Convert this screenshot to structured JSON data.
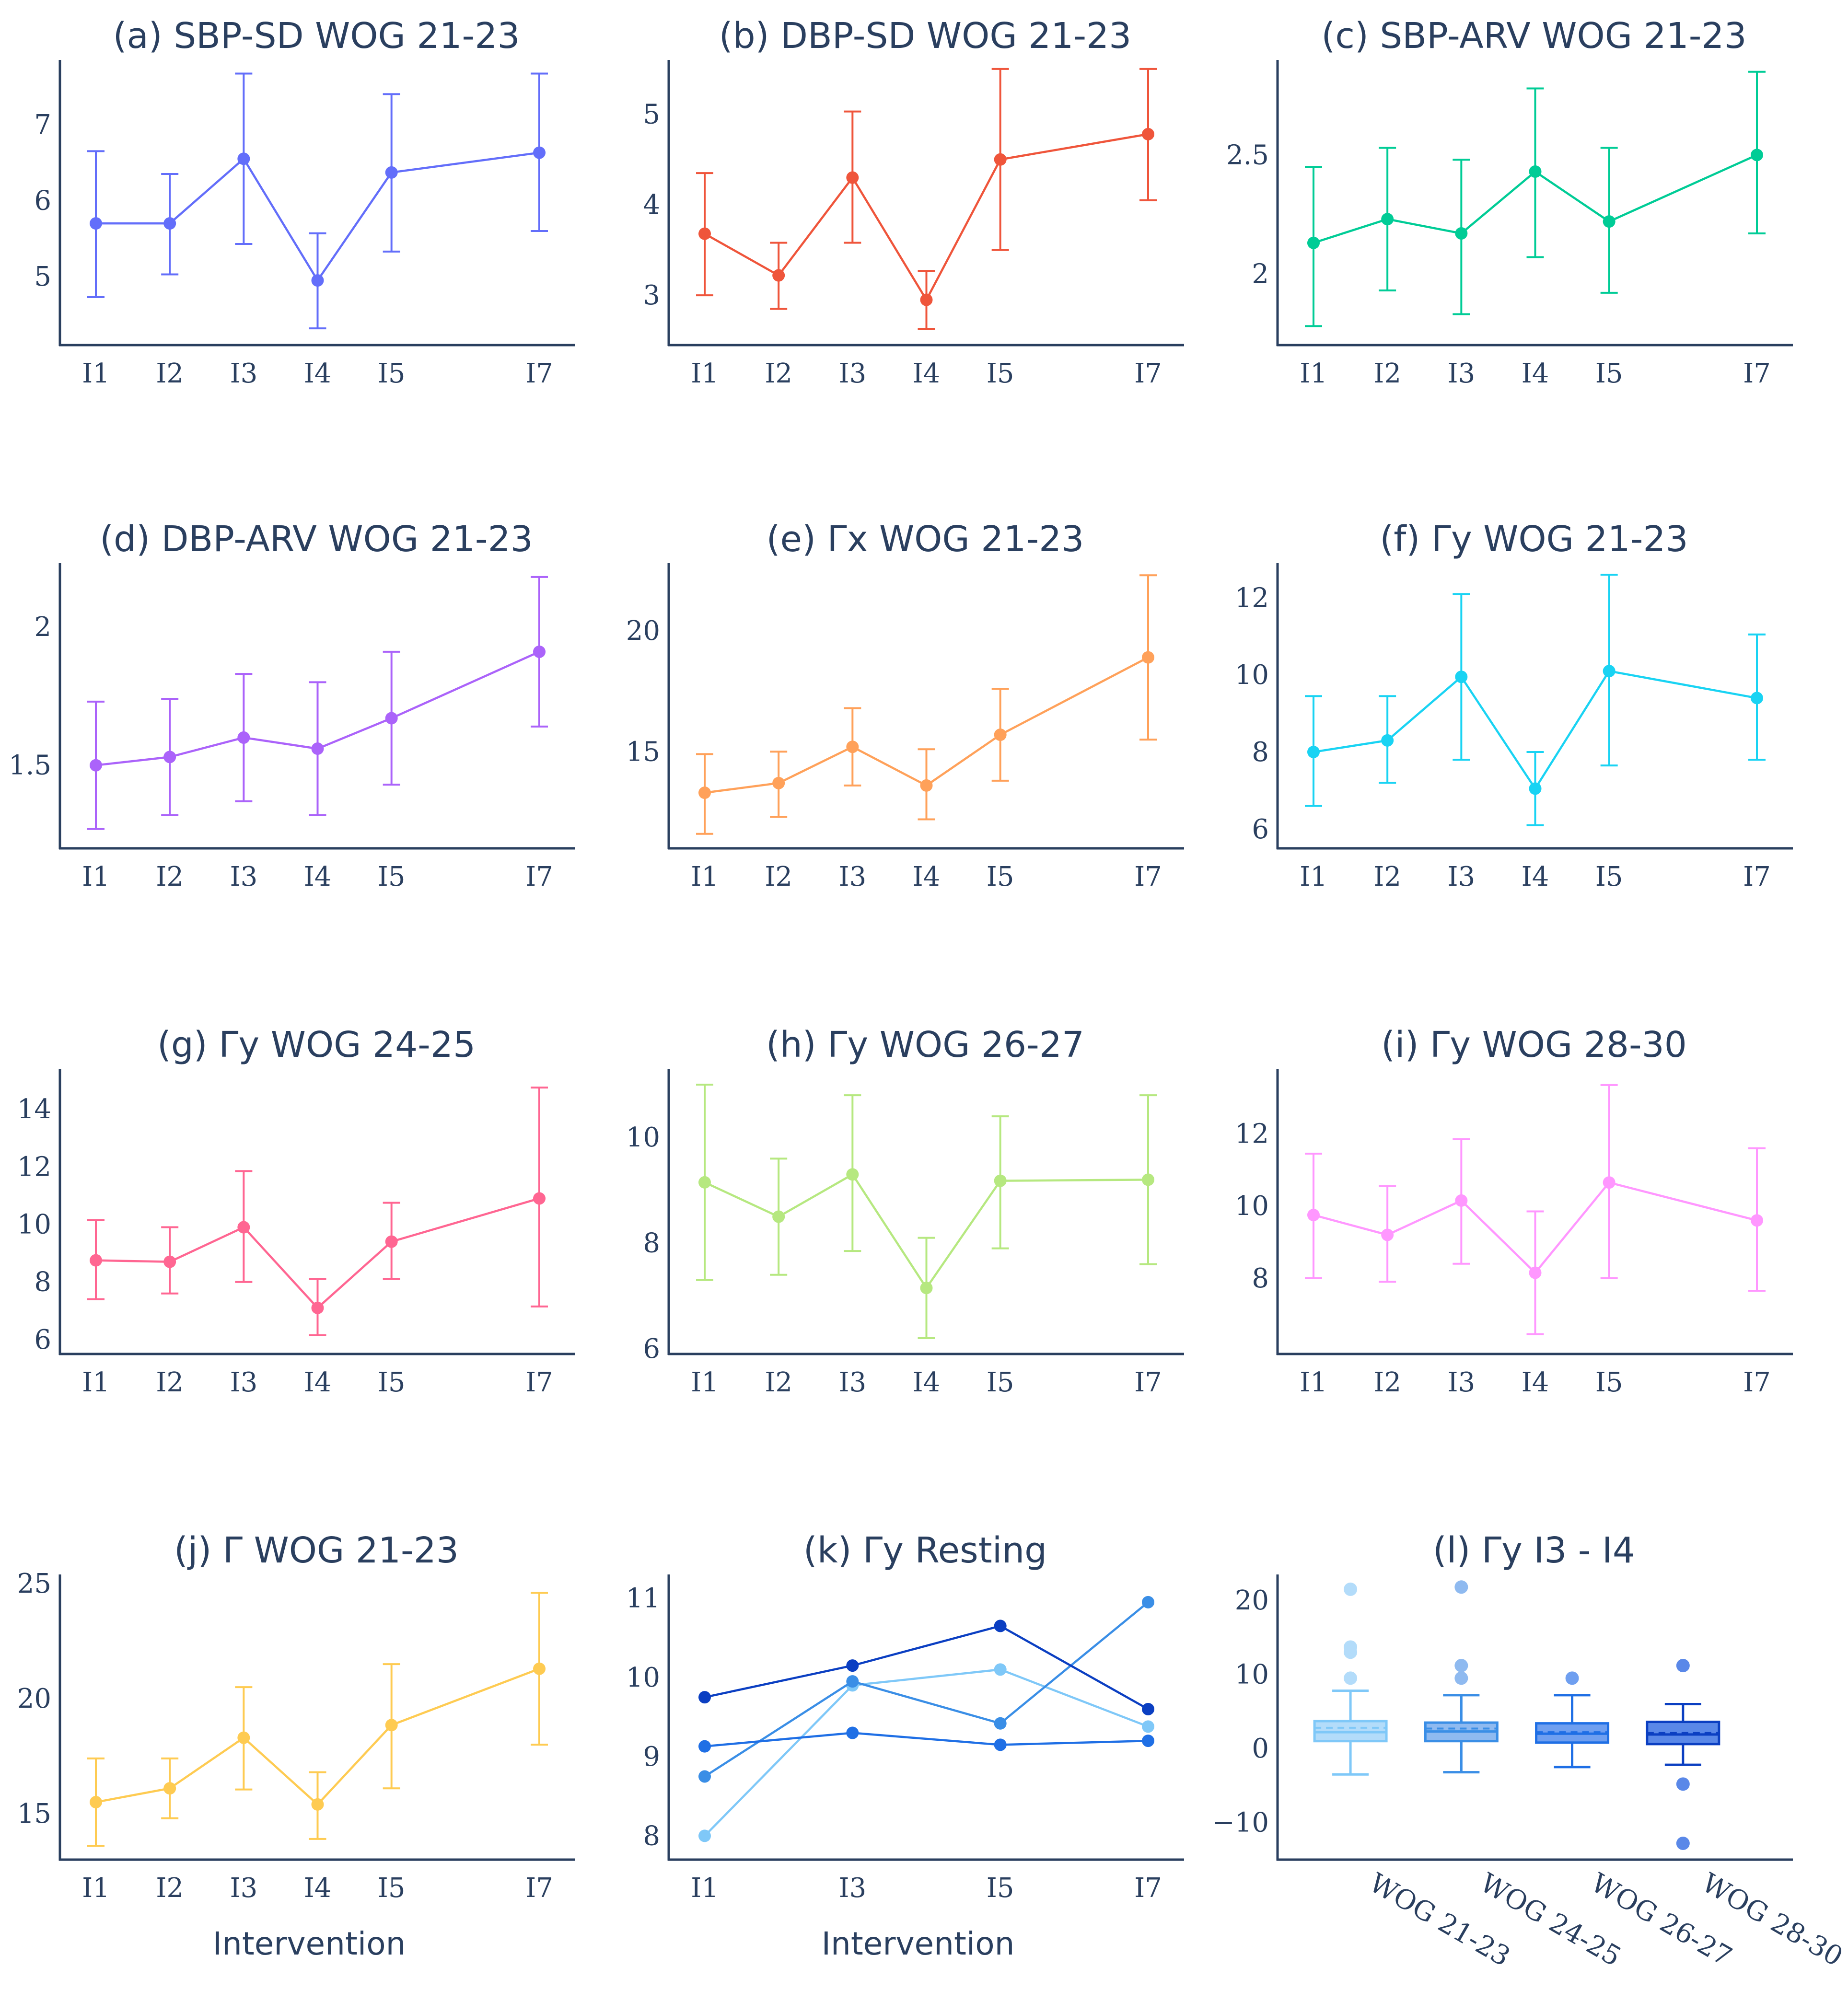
{
  "chart_data": [
    {
      "id": "a",
      "type": "line",
      "title": "(a) SBP-SD WOG 21-23",
      "color": "#636efa",
      "categories": [
        "I1",
        "I2",
        "I3",
        "I4",
        "I5",
        "I7"
      ],
      "xpos": [
        1,
        2,
        3,
        4,
        5,
        7
      ],
      "values": [
        5.7,
        5.7,
        6.55,
        4.95,
        6.37,
        6.63
      ],
      "err_low": [
        4.73,
        5.03,
        5.43,
        4.32,
        5.33,
        5.6
      ],
      "err_high": [
        6.65,
        6.35,
        7.67,
        5.57,
        7.4,
        7.67
      ],
      "yticks": [
        "5",
        "6",
        "7"
      ],
      "ytick_values": [
        5,
        6,
        7
      ],
      "ylim": [
        4.1,
        7.85
      ]
    },
    {
      "id": "b",
      "type": "line",
      "title": "(b) DBP-SD WOG 21-23",
      "color": "#ef553b",
      "categories": [
        "I1",
        "I2",
        "I3",
        "I4",
        "I5",
        "I7"
      ],
      "xpos": [
        1,
        2,
        3,
        4,
        5,
        7
      ],
      "values": [
        3.68,
        3.22,
        4.3,
        2.95,
        4.5,
        4.78
      ],
      "err_low": [
        3.0,
        2.85,
        3.58,
        2.63,
        3.5,
        4.05
      ],
      "err_high": [
        4.35,
        3.58,
        5.03,
        3.27,
        5.5,
        5.5
      ],
      "yticks": [
        "3",
        "4",
        "5"
      ],
      "ytick_values": [
        3,
        4,
        5
      ],
      "ylim": [
        2.45,
        5.6
      ]
    },
    {
      "id": "c",
      "type": "line",
      "title": "(c) SBP-ARV WOG 21-23",
      "color": "#00cc96",
      "categories": [
        "I1",
        "I2",
        "I3",
        "I4",
        "I5",
        "I7"
      ],
      "xpos": [
        1,
        2,
        3,
        4,
        5,
        7
      ],
      "values": [
        2.13,
        2.23,
        2.17,
        2.43,
        2.22,
        2.5
      ],
      "err_low": [
        1.78,
        1.93,
        1.83,
        2.07,
        1.92,
        2.17
      ],
      "err_high": [
        2.45,
        2.53,
        2.48,
        2.78,
        2.53,
        2.85
      ],
      "yticks": [
        "2",
        "2.5"
      ],
      "ytick_values": [
        2,
        2.5
      ],
      "ylim": [
        1.7,
        2.9
      ]
    },
    {
      "id": "d",
      "type": "line",
      "title": "(d) DBP-ARV WOG 21-23",
      "color": "#ab63fa",
      "categories": [
        "I1",
        "I2",
        "I3",
        "I4",
        "I5",
        "I7"
      ],
      "xpos": [
        1,
        2,
        3,
        4,
        5,
        7
      ],
      "values": [
        1.5,
        1.53,
        1.6,
        1.56,
        1.67,
        1.91
      ],
      "err_low": [
        1.27,
        1.32,
        1.37,
        1.32,
        1.43,
        1.64
      ],
      "err_high": [
        1.73,
        1.74,
        1.83,
        1.8,
        1.91,
        2.18
      ],
      "yticks": [
        "1.5",
        "2"
      ],
      "ytick_values": [
        1.5,
        2
      ],
      "ylim": [
        1.2,
        2.23
      ]
    },
    {
      "id": "e",
      "type": "line",
      "title": "(e) Γx WOG 21-23",
      "color": "#ffa15a",
      "categories": [
        "I1",
        "I2",
        "I3",
        "I4",
        "I5",
        "I7"
      ],
      "xpos": [
        1,
        2,
        3,
        4,
        5,
        7
      ],
      "values": [
        13.3,
        13.7,
        15.2,
        13.6,
        15.7,
        18.9
      ],
      "err_low": [
        11.6,
        12.3,
        13.6,
        12.2,
        13.8,
        15.5
      ],
      "err_high": [
        14.9,
        15.0,
        16.8,
        15.1,
        17.6,
        22.3
      ],
      "yticks": [
        "15",
        "20"
      ],
      "ytick_values": [
        15,
        20
      ],
      "ylim": [
        11.0,
        22.8
      ]
    },
    {
      "id": "f",
      "type": "line",
      "title": "(f) Γy WOG 21-23",
      "color": "#19d3f3",
      "categories": [
        "I1",
        "I2",
        "I3",
        "I4",
        "I5",
        "I7"
      ],
      "xpos": [
        1,
        2,
        3,
        4,
        5,
        7
      ],
      "values": [
        8.0,
        8.3,
        9.95,
        7.05,
        10.1,
        9.4
      ],
      "err_low": [
        6.6,
        7.2,
        7.8,
        6.1,
        7.65,
        7.8
      ],
      "err_high": [
        9.45,
        9.45,
        12.1,
        8.0,
        12.6,
        11.05
      ],
      "yticks": [
        "6",
        "8",
        "10",
        "12"
      ],
      "ytick_values": [
        6,
        8,
        10,
        12
      ],
      "ylim": [
        5.5,
        12.9
      ]
    },
    {
      "id": "g",
      "type": "line",
      "title": "(g) Γy WOG 24-25",
      "color": "#ff6692",
      "categories": [
        "I1",
        "I2",
        "I3",
        "I4",
        "I5",
        "I7"
      ],
      "xpos": [
        1,
        2,
        3,
        4,
        5,
        7
      ],
      "values": [
        8.75,
        8.7,
        9.9,
        7.1,
        9.4,
        10.9
      ],
      "err_low": [
        7.4,
        7.6,
        8.0,
        6.15,
        8.1,
        7.15
      ],
      "err_high": [
        10.15,
        9.9,
        11.85,
        8.1,
        10.75,
        14.75
      ],
      "yticks": [
        "6",
        "8",
        "10",
        "12",
        "14"
      ],
      "ytick_values": [
        6,
        8,
        10,
        12,
        14
      ],
      "ylim": [
        5.5,
        15.4
      ]
    },
    {
      "id": "h",
      "type": "line",
      "title": "(h) Γy WOG 26-27",
      "color": "#b6e880",
      "categories": [
        "I1",
        "I2",
        "I3",
        "I4",
        "I5",
        "I7"
      ],
      "xpos": [
        1,
        2,
        3,
        4,
        5,
        7
      ],
      "values": [
        9.15,
        8.5,
        9.3,
        7.15,
        9.18,
        9.2
      ],
      "err_low": [
        7.3,
        7.4,
        7.85,
        6.2,
        7.9,
        7.6
      ],
      "err_high": [
        11.0,
        9.6,
        10.8,
        8.1,
        10.4,
        10.8
      ],
      "yticks": [
        "6",
        "8",
        "10"
      ],
      "ytick_values": [
        6,
        8,
        10
      ],
      "ylim": [
        5.9,
        11.3
      ]
    },
    {
      "id": "i",
      "type": "line",
      "title": "(i) Γy WOG 28-30",
      "color": "#ff97ff",
      "categories": [
        "I1",
        "I2",
        "I3",
        "I4",
        "I5",
        "I7"
      ],
      "xpos": [
        1,
        2,
        3,
        4,
        5,
        7
      ],
      "values": [
        9.75,
        9.2,
        10.15,
        8.15,
        10.65,
        9.6
      ],
      "err_low": [
        8.0,
        7.9,
        8.4,
        6.45,
        8.0,
        7.65
      ],
      "err_high": [
        11.45,
        10.55,
        11.85,
        9.85,
        13.35,
        11.6
      ],
      "yticks": [
        "8",
        "10",
        "12"
      ],
      "ytick_values": [
        8,
        10,
        12
      ],
      "ylim": [
        5.9,
        13.8
      ]
    },
    {
      "id": "j",
      "type": "line",
      "title": "(j) Γ WOG 21-23",
      "color": "#fecb52",
      "xlabel": "Intervention",
      "categories": [
        "I1",
        "I2",
        "I3",
        "I4",
        "I5",
        "I7"
      ],
      "xpos": [
        1,
        2,
        3,
        4,
        5,
        7
      ],
      "values": [
        15.5,
        16.1,
        18.3,
        15.4,
        18.85,
        21.3
      ],
      "err_low": [
        13.6,
        14.8,
        16.05,
        13.9,
        16.1,
        18.0
      ],
      "err_high": [
        17.4,
        17.4,
        20.5,
        16.8,
        21.5,
        24.6
      ],
      "yticks": [
        "15",
        "20",
        "25"
      ],
      "ytick_values": [
        15,
        20,
        25
      ],
      "ylim": [
        13.0,
        25.4
      ]
    },
    {
      "id": "k",
      "type": "line",
      "title": "(k) Γy Resting",
      "xlabel": "Intervention",
      "categories": [
        "I1",
        "I3",
        "I5",
        "I7"
      ],
      "xpos": [
        1,
        3,
        5,
        7
      ],
      "series": [
        {
          "name": "WOG 21-23",
          "color": "#7fc8f8",
          "values": [
            8.0,
            9.9,
            10.1,
            9.38
          ]
        },
        {
          "name": "WOG 24-25",
          "color": "#3a8ee6",
          "values": [
            8.75,
            9.95,
            9.42,
            10.95
          ]
        },
        {
          "name": "WOG 26-27",
          "color": "#1f6fe5",
          "values": [
            9.13,
            9.3,
            9.15,
            9.2
          ]
        },
        {
          "name": "WOG 28-30",
          "color": "#0b3fc2",
          "values": [
            9.75,
            10.15,
            10.65,
            9.6
          ]
        }
      ],
      "yticks": [
        "8",
        "9",
        "10",
        "11"
      ],
      "ytick_values": [
        8,
        9,
        10,
        11
      ],
      "ylim": [
        7.7,
        11.3
      ]
    },
    {
      "id": "l",
      "type": "box",
      "title": "(l) Γy I3 - I4",
      "categories": [
        "WOG 21-23",
        "WOG 24-25",
        "WOG 26-27",
        "WOG 28-30"
      ],
      "boxes": [
        {
          "fill": "#b3dcfa",
          "line": "#7fc8f8",
          "lower_fence": -3.5,
          "q1": 1.0,
          "median": 2.2,
          "mean": 2.8,
          "q3": 3.7,
          "upper_fence": 7.8,
          "outliers": [
            9.5,
            13.0,
            13.7,
            21.5
          ]
        },
        {
          "fill": "#8fbaf0",
          "line": "#3a8ee6",
          "lower_fence": -3.2,
          "q1": 1.0,
          "median": 2.3,
          "mean": 2.7,
          "q3": 3.5,
          "upper_fence": 7.2,
          "outliers": [
            9.5,
            11.2,
            21.8
          ]
        },
        {
          "fill": "#6f9ff0",
          "line": "#1f6fe5",
          "lower_fence": -2.5,
          "q1": 0.8,
          "median": 2.0,
          "mean": 2.2,
          "q3": 3.4,
          "upper_fence": 7.2,
          "outliers": [
            9.5
          ]
        },
        {
          "fill": "#5a88e8",
          "line": "#0b3fc2",
          "lower_fence": -2.2,
          "q1": 0.6,
          "median": 1.9,
          "mean": 2.1,
          "q3": 3.6,
          "upper_fence": 6.0,
          "outliers": [
            11.2,
            -4.8,
            -12.8
          ]
        }
      ],
      "yticks": [
        "20",
        "10",
        "0",
        "−10"
      ],
      "ytick_values": [
        20,
        10,
        0,
        -10
      ],
      "ylim": [
        -15.0,
        23.5
      ]
    }
  ]
}
